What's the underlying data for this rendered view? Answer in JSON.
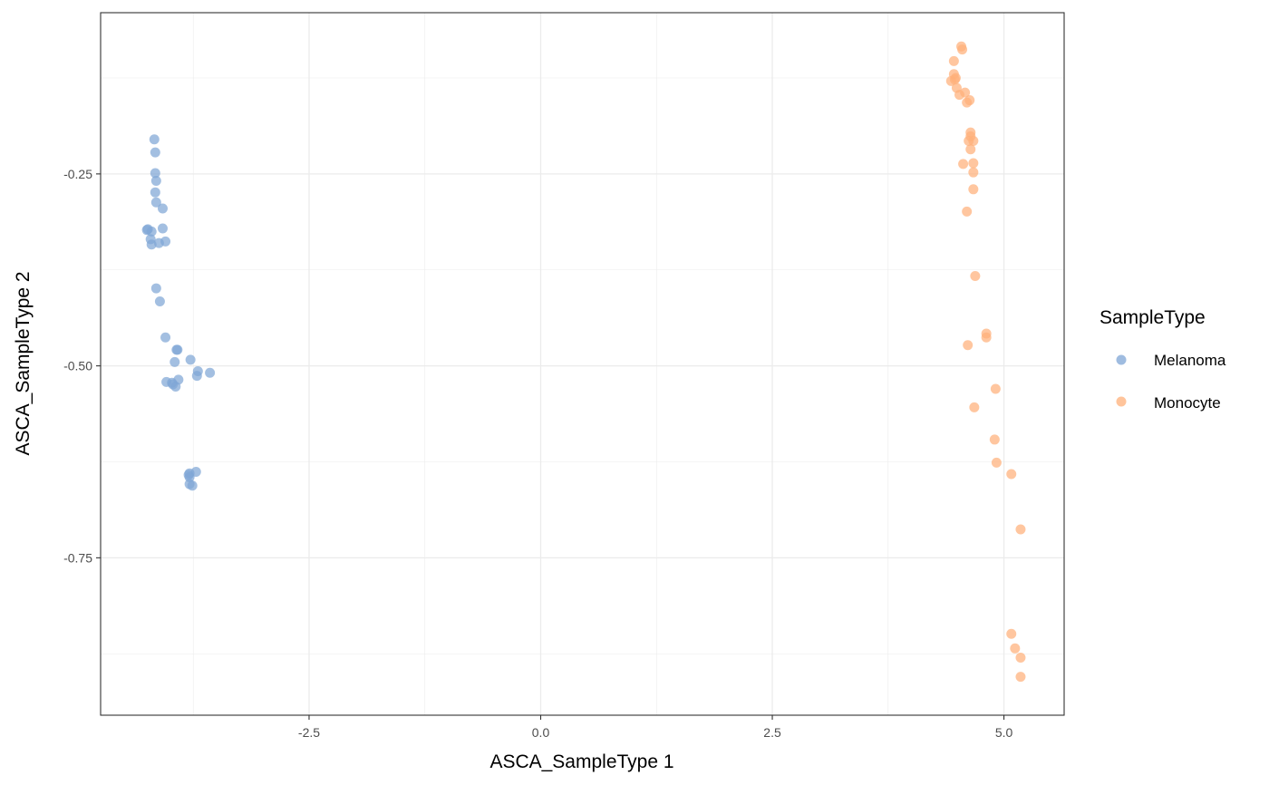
{
  "chart_data": {
    "type": "scatter",
    "xlabel": "ASCA_SampleType 1",
    "ylabel": "ASCA_SampleType 2",
    "xlim": [
      -4.75,
      5.65
    ],
    "ylim": [
      -0.955,
      -0.04
    ],
    "x_ticks": [
      -2.5,
      0.0,
      2.5,
      5.0
    ],
    "x_tick_labels": [
      "-2.5",
      "0.0",
      "2.5",
      "5.0"
    ],
    "y_ticks": [
      -0.25,
      -0.5,
      -0.75
    ],
    "y_tick_labels": [
      "-0.25",
      "-0.50",
      "-0.75"
    ],
    "grid": true,
    "legend": {
      "title": "SampleType",
      "position": "right"
    },
    "series": [
      {
        "name": "Melanoma",
        "color": "#7FA6D5",
        "points": [
          [
            -4.17,
            -0.205
          ],
          [
            -4.16,
            -0.222
          ],
          [
            -4.16,
            -0.249
          ],
          [
            -4.15,
            -0.259
          ],
          [
            -4.16,
            -0.274
          ],
          [
            -4.15,
            -0.287
          ],
          [
            -4.08,
            -0.295
          ],
          [
            -4.24,
            -0.322
          ],
          [
            -4.25,
            -0.323
          ],
          [
            -4.2,
            -0.325
          ],
          [
            -4.08,
            -0.321
          ],
          [
            -4.21,
            -0.335
          ],
          [
            -4.2,
            -0.342
          ],
          [
            -4.12,
            -0.34
          ],
          [
            -4.05,
            -0.338
          ],
          [
            -4.15,
            -0.399
          ],
          [
            -4.11,
            -0.416
          ],
          [
            -4.05,
            -0.463
          ],
          [
            -3.93,
            -0.479
          ],
          [
            -3.92,
            -0.479
          ],
          [
            -3.95,
            -0.495
          ],
          [
            -3.78,
            -0.492
          ],
          [
            -3.7,
            -0.507
          ],
          [
            -3.57,
            -0.509
          ],
          [
            -3.71,
            -0.513
          ],
          [
            -4.04,
            -0.521
          ],
          [
            -3.98,
            -0.522
          ],
          [
            -3.97,
            -0.524
          ],
          [
            -3.91,
            -0.518
          ],
          [
            -3.94,
            -0.527
          ],
          [
            -3.79,
            -0.64
          ],
          [
            -3.8,
            -0.642
          ],
          [
            -3.79,
            -0.645
          ],
          [
            -3.72,
            -0.638
          ],
          [
            -3.79,
            -0.654
          ],
          [
            -3.76,
            -0.656
          ]
        ]
      },
      {
        "name": "Monocyte",
        "color": "#FFB07A",
        "points": [
          [
            4.54,
            -0.084
          ],
          [
            4.55,
            -0.088
          ],
          [
            4.46,
            -0.103
          ],
          [
            4.46,
            -0.12
          ],
          [
            4.48,
            -0.125
          ],
          [
            4.47,
            -0.127
          ],
          [
            4.43,
            -0.129
          ],
          [
            4.49,
            -0.138
          ],
          [
            4.58,
            -0.144
          ],
          [
            4.52,
            -0.147
          ],
          [
            4.63,
            -0.154
          ],
          [
            4.6,
            -0.157
          ],
          [
            4.64,
            -0.196
          ],
          [
            4.64,
            -0.201
          ],
          [
            4.62,
            -0.207
          ],
          [
            4.67,
            -0.207
          ],
          [
            4.64,
            -0.218
          ],
          [
            4.56,
            -0.237
          ],
          [
            4.67,
            -0.236
          ],
          [
            4.67,
            -0.248
          ],
          [
            4.67,
            -0.27
          ],
          [
            4.6,
            -0.299
          ],
          [
            4.69,
            -0.383
          ],
          [
            4.81,
            -0.458
          ],
          [
            4.81,
            -0.463
          ],
          [
            4.61,
            -0.473
          ],
          [
            4.91,
            -0.53
          ],
          [
            4.68,
            -0.554
          ],
          [
            4.9,
            -0.596
          ],
          [
            4.92,
            -0.626
          ],
          [
            5.08,
            -0.641
          ],
          [
            5.18,
            -0.713
          ],
          [
            5.08,
            -0.849
          ],
          [
            5.12,
            -0.868
          ],
          [
            5.18,
            -0.88
          ],
          [
            5.18,
            -0.905
          ]
        ]
      }
    ]
  }
}
